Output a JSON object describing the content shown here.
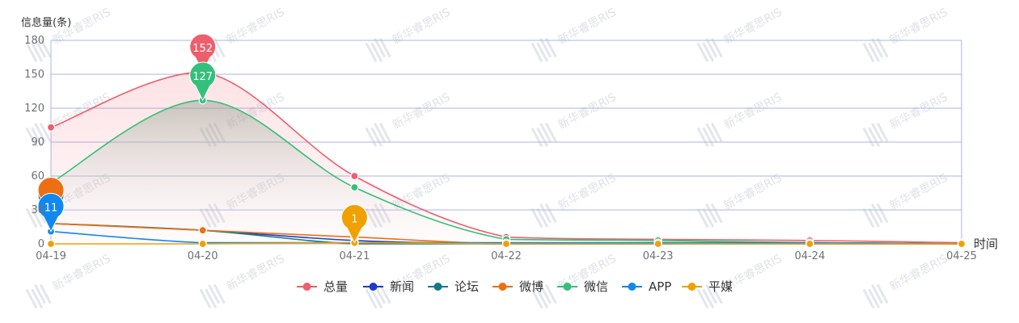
{
  "chart_data": {
    "type": "line",
    "ylabel": "信息量(条)",
    "xlabel": "时间",
    "categories": [
      "04-19",
      "04-20",
      "04-21",
      "04-22",
      "04-23",
      "04-24",
      "04-25"
    ],
    "ylim": [
      0,
      180
    ],
    "yticks": [
      0,
      30,
      60,
      90,
      120,
      150,
      180
    ],
    "grid": true,
    "legend_position": "bottom-center",
    "watermark": "新华睿思RIS",
    "series": [
      {
        "name": "总量",
        "color": "#ee5e6c",
        "values": [
          103,
          152,
          60,
          6,
          4,
          3,
          1
        ],
        "area": true
      },
      {
        "name": "新闻",
        "color": "#1f3bcc",
        "values": [
          18,
          12,
          3,
          0,
          0,
          1,
          0
        ]
      },
      {
        "name": "论坛",
        "color": "#127a8a",
        "values": [
          18,
          12,
          0,
          0,
          0,
          0,
          0
        ]
      },
      {
        "name": "微博",
        "color": "#ee6f11",
        "values": [
          18,
          12,
          6,
          0,
          1,
          0,
          0
        ]
      },
      {
        "name": "微信",
        "color": "#34c07a",
        "values": [
          54,
          127,
          50,
          4,
          3,
          1,
          0
        ],
        "area": true
      },
      {
        "name": "APP",
        "color": "#1188ee",
        "values": [
          11,
          1,
          1,
          1,
          1,
          1,
          0
        ]
      },
      {
        "name": "平媒",
        "color": "#f0a000",
        "values": [
          0,
          0,
          1,
          0,
          0,
          0,
          0
        ]
      }
    ],
    "markers": [
      {
        "series": "总量",
        "index": 1,
        "label": "152"
      },
      {
        "series": "微信",
        "index": 1,
        "label": "127"
      },
      {
        "series": "APP",
        "index": 0,
        "label": "11"
      },
      {
        "series": "平媒",
        "index": 2,
        "label": "1"
      }
    ],
    "hidden_markers": [
      {
        "series": "论坛",
        "index": 0
      },
      {
        "series": "微博",
        "index": 0
      }
    ]
  }
}
